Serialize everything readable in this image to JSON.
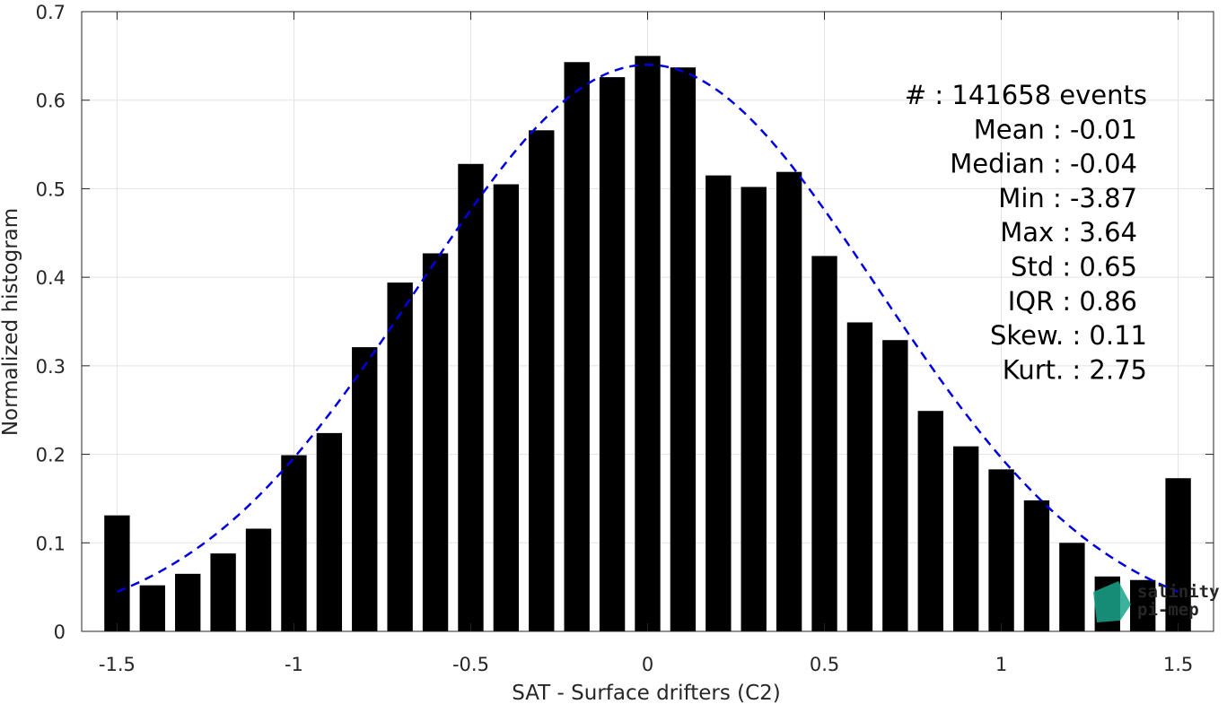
{
  "chart_data": {
    "type": "bar",
    "xlabel": "SAT - Surface drifters (C2)",
    "ylabel": "Normalized histogram",
    "xlim": [
      -1.6,
      1.6
    ],
    "ylim": [
      0,
      0.7
    ],
    "xticks": [
      -1.5,
      -1,
      -0.5,
      0,
      0.5,
      1,
      1.5
    ],
    "xtick_labels": [
      "-1.5",
      "-1",
      "-0.5",
      "0",
      "0.5",
      "1",
      "1.5"
    ],
    "yticks": [
      0,
      0.1,
      0.2,
      0.3,
      0.4,
      0.5,
      0.6,
      0.7
    ],
    "ytick_labels": [
      "0",
      "0.1",
      "0.2",
      "0.3",
      "0.4",
      "0.5",
      "0.6",
      "0.7"
    ],
    "grid": true,
    "bar_color": "#000000",
    "bars": {
      "x": [
        -1.5,
        -1.4,
        -1.3,
        -1.2,
        -1.1,
        -1.0,
        -0.9,
        -0.8,
        -0.7,
        -0.6,
        -0.5,
        -0.4,
        -0.3,
        -0.2,
        -0.1,
        0.0,
        0.1,
        0.2,
        0.3,
        0.4,
        0.5,
        0.6,
        0.7,
        0.8,
        0.9,
        1.0,
        1.1,
        1.2,
        1.3,
        1.4,
        1.5
      ],
      "values": [
        0.131,
        0.052,
        0.065,
        0.088,
        0.116,
        0.199,
        0.224,
        0.321,
        0.394,
        0.427,
        0.528,
        0.505,
        0.566,
        0.643,
        0.626,
        0.65,
        0.637,
        0.515,
        0.502,
        0.519,
        0.424,
        0.349,
        0.329,
        0.249,
        0.209,
        0.183,
        0.148,
        0.1,
        0.062,
        0.058,
        0.173
      ]
    },
    "fit": {
      "type": "gaussian",
      "style": "dashed",
      "color": "#0000e0",
      "mean": 0.0,
      "std": 0.65,
      "peak": 0.64,
      "range": [
        -1.5,
        1.5
      ]
    },
    "annotations": [
      "#  : 141658 events",
      "Mean : -0.01",
      "Median : -0.04",
      "Min : -3.87",
      "Max : 3.64",
      "Std : 0.65",
      "IQR : 0.86",
      "Skew. : 0.11",
      "Kurt. : 2.75"
    ]
  },
  "logo": {
    "line1": "salinity",
    "line2": "pi-mep",
    "color": "#1aa38a"
  }
}
